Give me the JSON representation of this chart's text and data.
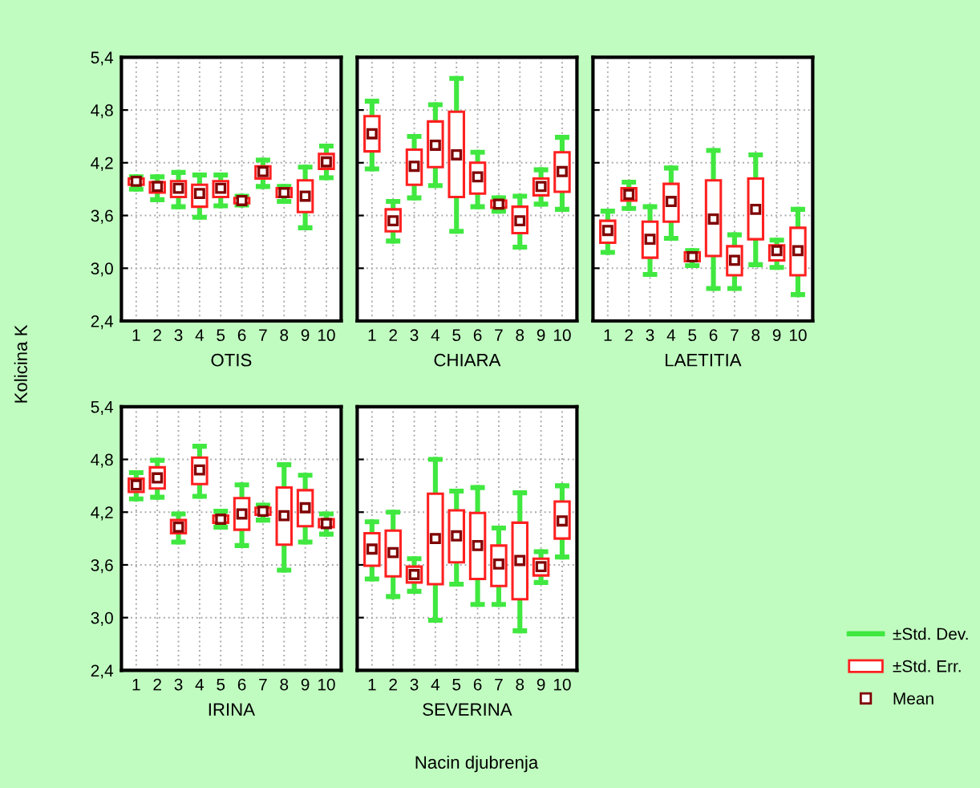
{
  "chart_data": [
    {
      "type": "box",
      "xlabel": "OTIS",
      "ylabel": "Kolicina K",
      "categories": [
        "1",
        "2",
        "3",
        "4",
        "5",
        "6",
        "7",
        "8",
        "9",
        "10"
      ],
      "ylim": [
        2.4,
        5.4
      ],
      "yticks": [
        {
          "value": 2.4,
          "label": "2,4"
        },
        {
          "value": 3.0,
          "label": "3,0"
        },
        {
          "value": 3.6,
          "label": "3,6"
        },
        {
          "value": 4.2,
          "label": "4,2"
        },
        {
          "value": 4.8,
          "label": "4,8"
        },
        {
          "value": 5.4,
          "label": "5,4"
        }
      ],
      "grid": true,
      "color": "#ff2020",
      "boxes": [
        {
          "low": 3.9,
          "q1": 3.95,
          "median": 3.99,
          "q3": 4.02,
          "high": 4.04
        },
        {
          "low": 3.78,
          "q1": 3.86,
          "median": 3.93,
          "q3": 3.98,
          "high": 4.04
        },
        {
          "low": 3.7,
          "q1": 3.81,
          "median": 3.91,
          "q3": 3.99,
          "high": 4.09
        },
        {
          "low": 3.58,
          "q1": 3.7,
          "median": 3.85,
          "q3": 3.95,
          "high": 4.06
        },
        {
          "low": 3.71,
          "q1": 3.81,
          "median": 3.91,
          "q3": 3.99,
          "high": 4.06
        },
        {
          "low": 3.72,
          "q1": 3.74,
          "median": 3.77,
          "q3": 3.8,
          "high": 3.82
        },
        {
          "low": 3.93,
          "q1": 4.02,
          "median": 4.1,
          "q3": 4.16,
          "high": 4.23
        },
        {
          "low": 3.76,
          "q1": 3.81,
          "median": 3.86,
          "q3": 3.91,
          "high": 3.93
        },
        {
          "low": 3.46,
          "q1": 3.64,
          "median": 3.82,
          "q3": 4.0,
          "high": 4.15
        },
        {
          "low": 4.03,
          "q1": 4.13,
          "median": 4.21,
          "q3": 4.3,
          "high": 4.39
        }
      ]
    },
    {
      "type": "box",
      "xlabel": "CHIARA",
      "categories": [
        "1",
        "2",
        "3",
        "4",
        "5",
        "6",
        "7",
        "8",
        "9",
        "10"
      ],
      "ylim": [
        2.4,
        5.4
      ],
      "yticks": [
        {
          "value": 2.4,
          "label": null
        },
        {
          "value": 3.0,
          "label": null
        },
        {
          "value": 3.6,
          "label": null
        },
        {
          "value": 4.2,
          "label": null
        },
        {
          "value": 4.8,
          "label": null
        },
        {
          "value": 5.4,
          "label": null
        }
      ],
      "grid": true,
      "tick_labels": "x",
      "color": "#ff2020",
      "boxes": [
        {
          "low": 4.13,
          "q1": 4.33,
          "median": 4.53,
          "q3": 4.73,
          "high": 4.9
        },
        {
          "low": 3.31,
          "q1": 3.42,
          "median": 3.54,
          "q3": 3.67,
          "high": 3.76
        },
        {
          "low": 3.8,
          "q1": 3.95,
          "median": 4.16,
          "q3": 4.35,
          "high": 4.5
        },
        {
          "low": 3.94,
          "q1": 4.15,
          "median": 4.4,
          "q3": 4.67,
          "high": 4.86
        },
        {
          "low": 3.42,
          "q1": 3.81,
          "median": 4.29,
          "q3": 4.78,
          "high": 5.16
        },
        {
          "low": 3.7,
          "q1": 3.85,
          "median": 4.04,
          "q3": 4.2,
          "high": 4.32
        },
        {
          "low": 3.65,
          "q1": 3.69,
          "median": 3.73,
          "q3": 3.77,
          "high": 3.8
        },
        {
          "low": 3.24,
          "q1": 3.4,
          "median": 3.54,
          "q3": 3.7,
          "high": 3.82
        },
        {
          "low": 3.73,
          "q1": 3.83,
          "median": 3.93,
          "q3": 4.02,
          "high": 4.12
        },
        {
          "low": 3.67,
          "q1": 3.87,
          "median": 4.1,
          "q3": 4.32,
          "high": 4.49
        }
      ]
    },
    {
      "type": "box",
      "xlabel": "LAETITIA",
      "categories": [
        "1",
        "2",
        "3",
        "4",
        "5",
        "6",
        "7",
        "8",
        "9",
        "10"
      ],
      "ylim": [
        2.4,
        5.4
      ],
      "yticks": [
        {
          "value": 2.4,
          "label": null
        },
        {
          "value": 3.0,
          "label": null
        },
        {
          "value": 3.6,
          "label": null
        },
        {
          "value": 4.2,
          "label": null
        },
        {
          "value": 4.8,
          "label": null
        },
        {
          "value": 5.4,
          "label": null
        }
      ],
      "grid": true,
      "tick_labels": "x",
      "color": "#ff2020",
      "boxes": [
        {
          "low": 3.18,
          "q1": 3.29,
          "median": 3.43,
          "q3": 3.54,
          "high": 3.65
        },
        {
          "low": 3.68,
          "q1": 3.77,
          "median": 3.84,
          "q3": 3.91,
          "high": 3.98
        },
        {
          "low": 2.93,
          "q1": 3.12,
          "median": 3.33,
          "q3": 3.53,
          "high": 3.7
        },
        {
          "low": 3.34,
          "q1": 3.53,
          "median": 3.76,
          "q3": 3.96,
          "high": 4.14
        },
        {
          "low": 3.03,
          "q1": 3.08,
          "median": 3.13,
          "q3": 3.18,
          "high": 3.2
        },
        {
          "low": 2.77,
          "q1": 3.14,
          "median": 3.56,
          "q3": 4.0,
          "high": 4.34
        },
        {
          "low": 2.77,
          "q1": 2.92,
          "median": 3.09,
          "q3": 3.25,
          "high": 3.38
        },
        {
          "low": 3.04,
          "q1": 3.33,
          "median": 3.67,
          "q3": 4.02,
          "high": 4.29
        },
        {
          "low": 3.01,
          "q1": 3.09,
          "median": 3.2,
          "q3": 3.26,
          "high": 3.32
        },
        {
          "low": 2.7,
          "q1": 2.92,
          "median": 3.2,
          "q3": 3.46,
          "high": 3.67
        }
      ]
    },
    {
      "type": "box",
      "xlabel": "IRINA",
      "categories": [
        "1",
        "2",
        "3",
        "4",
        "5",
        "6",
        "7",
        "8",
        "9",
        "10"
      ],
      "ylim": [
        2.4,
        5.4
      ],
      "yticks": [
        {
          "value": 2.4,
          "label": "2,4"
        },
        {
          "value": 3.0,
          "label": "3,0"
        },
        {
          "value": 3.6,
          "label": "3,6"
        },
        {
          "value": 4.2,
          "label": "4,2"
        },
        {
          "value": 4.8,
          "label": "4,8"
        },
        {
          "value": 5.4,
          "label": "5,4"
        }
      ],
      "grid": true,
      "annotations": [
        "Nacin djubrenja"
      ],
      "color": "#ff2020",
      "boxes": [
        {
          "low": 4.35,
          "q1": 4.43,
          "median": 4.51,
          "q3": 4.58,
          "high": 4.65
        },
        {
          "low": 4.37,
          "q1": 4.47,
          "median": 4.59,
          "q3": 4.71,
          "high": 4.79
        },
        {
          "low": 3.86,
          "q1": 3.96,
          "median": 4.03,
          "q3": 4.11,
          "high": 4.18
        },
        {
          "low": 4.38,
          "q1": 4.52,
          "median": 4.68,
          "q3": 4.82,
          "high": 4.95
        },
        {
          "low": 4.03,
          "q1": 4.08,
          "median": 4.12,
          "q3": 4.16,
          "high": 4.21
        },
        {
          "low": 3.82,
          "q1": 4.0,
          "median": 4.18,
          "q3": 4.36,
          "high": 4.51
        },
        {
          "low": 4.11,
          "q1": 4.17,
          "median": 4.21,
          "q3": 4.25,
          "high": 4.28
        },
        {
          "low": 3.54,
          "q1": 3.83,
          "median": 4.16,
          "q3": 4.48,
          "high": 4.74
        },
        {
          "low": 3.86,
          "q1": 4.04,
          "median": 4.25,
          "q3": 4.45,
          "high": 4.62
        },
        {
          "low": 3.95,
          "q1": 4.03,
          "median": 4.07,
          "q3": 4.12,
          "high": 4.18
        }
      ]
    },
    {
      "type": "box",
      "xlabel": "SEVERINA",
      "categories": [
        "1",
        "2",
        "3",
        "4",
        "5",
        "6",
        "7",
        "8",
        "9",
        "10"
      ],
      "ylim": [
        2.4,
        5.4
      ],
      "yticks": [
        {
          "value": 2.4,
          "label": null
        },
        {
          "value": 3.0,
          "label": null
        },
        {
          "value": 3.6,
          "label": null
        },
        {
          "value": 4.2,
          "label": null
        },
        {
          "value": 4.8,
          "label": null
        },
        {
          "value": 5.4,
          "label": null
        }
      ],
      "grid": true,
      "tick_labels": "x",
      "color": "#ff2020",
      "annotations": [
        "±Std. Dev.",
        "±Std. Err.",
        "Mean"
      ],
      "boxes": [
        {
          "low": 3.44,
          "q1": 3.59,
          "median": 3.78,
          "q3": 3.96,
          "high": 4.09
        },
        {
          "low": 3.24,
          "q1": 3.47,
          "median": 3.74,
          "q3": 3.99,
          "high": 4.2
        },
        {
          "low": 3.3,
          "q1": 3.4,
          "median": 3.49,
          "q3": 3.58,
          "high": 3.67
        },
        {
          "low": 2.97,
          "q1": 3.38,
          "median": 3.9,
          "q3": 4.41,
          "high": 4.8
        },
        {
          "low": 3.38,
          "q1": 3.63,
          "median": 3.93,
          "q3": 4.22,
          "high": 4.44
        },
        {
          "low": 3.15,
          "q1": 3.44,
          "median": 3.82,
          "q3": 4.19,
          "high": 4.48
        },
        {
          "low": 3.15,
          "q1": 3.36,
          "median": 3.61,
          "q3": 3.82,
          "high": 4.02
        },
        {
          "low": 2.85,
          "q1": 3.21,
          "median": 3.65,
          "q3": 4.08,
          "high": 4.42
        },
        {
          "low": 3.4,
          "q1": 3.48,
          "median": 3.58,
          "q3": 3.67,
          "high": 3.75
        },
        {
          "low": 3.69,
          "q1": 3.9,
          "median": 4.1,
          "q3": 4.32,
          "high": 4.5
        }
      ]
    }
  ]
}
